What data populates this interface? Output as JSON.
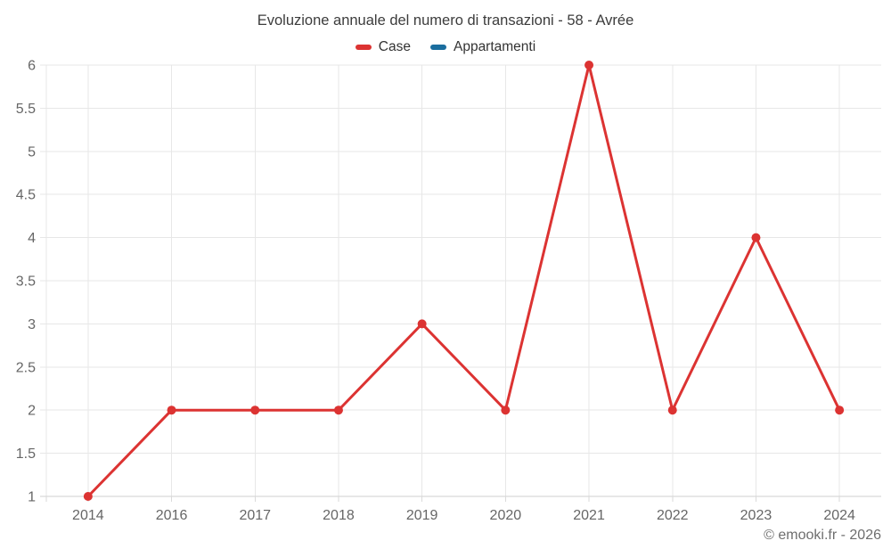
{
  "header": {
    "title": "Evoluzione annuale del numero di transazioni - 58 - Avrée"
  },
  "chart_data": {
    "type": "line",
    "title": "Evoluzione annuale del numero di transazioni - 58 - Avrée",
    "categories": [
      "2014",
      "2016",
      "2017",
      "2018",
      "2019",
      "2020",
      "2021",
      "2022",
      "2023",
      "2024"
    ],
    "series": [
      {
        "name": "Case",
        "color": "#dc3332",
        "values": [
          1,
          2,
          2,
          2,
          3,
          2,
          6,
          2,
          4,
          2
        ]
      },
      {
        "name": "Appartamenti",
        "color": "#1a6d9e",
        "values": []
      }
    ],
    "ylim": [
      1,
      6
    ],
    "yticks": [
      1,
      1.5,
      2,
      2.5,
      3,
      3.5,
      4,
      4.5,
      5,
      5.5,
      6
    ],
    "ytick_labels": [
      "1",
      "1.5",
      "2",
      "2.5",
      "3",
      "3.5",
      "4",
      "4.5",
      "5",
      "5.5",
      "6"
    ],
    "xlabel": "",
    "ylabel": "",
    "grid": true,
    "legend_position": "top",
    "marker_radius": 5,
    "line_width": 3
  },
  "style_colors": {
    "grid": "#e7e7e7",
    "axis_line": "#cfcfcf",
    "tick": "#dadada",
    "axis_label": "#666666",
    "title_text": "#3c3c3c",
    "legend_text": "#333333"
  },
  "footer": {
    "credit": "© emooki.fr - 2026"
  }
}
